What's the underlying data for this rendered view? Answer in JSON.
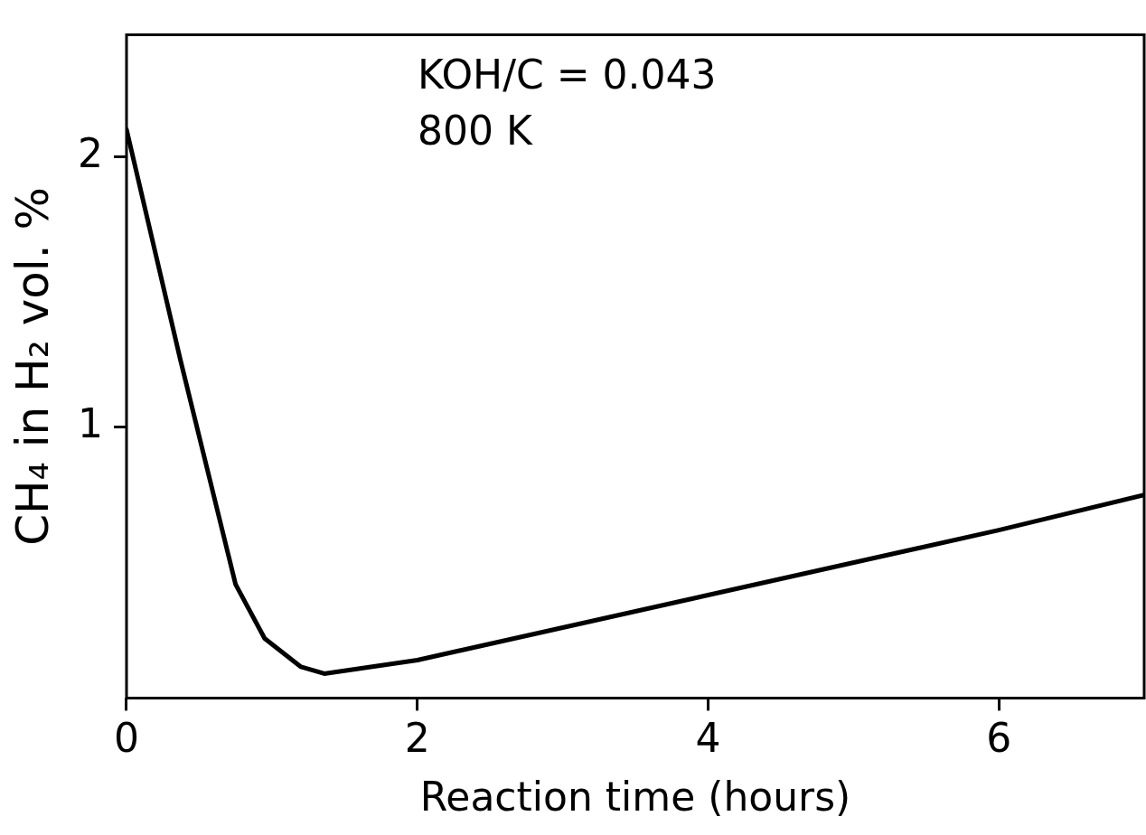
{
  "chart_data": {
    "type": "line",
    "xlabel": "Reaction time (hours)",
    "ylabel": "CH₄ in H₂ vol. %",
    "x": [
      0,
      0.37,
      0.75,
      0.95,
      1.2,
      1.36,
      2,
      4,
      6,
      7
    ],
    "series": [
      {
        "color": "#000000",
        "values": [
          2.1,
          1.25,
          0.42,
          0.22,
          0.115,
          0.09,
          0.14,
          0.38,
          0.62,
          0.75
        ]
      }
    ],
    "xlim": [
      0,
      7
    ],
    "xticks": [
      0,
      2,
      4,
      6
    ],
    "ylim": [
      0,
      2.45
    ],
    "yticks": [
      1,
      2
    ],
    "grid": false,
    "legend": false,
    "marker": "none",
    "line_style": "solid",
    "annotations": [
      "KOH/C = 0.043",
      "800 K"
    ]
  }
}
